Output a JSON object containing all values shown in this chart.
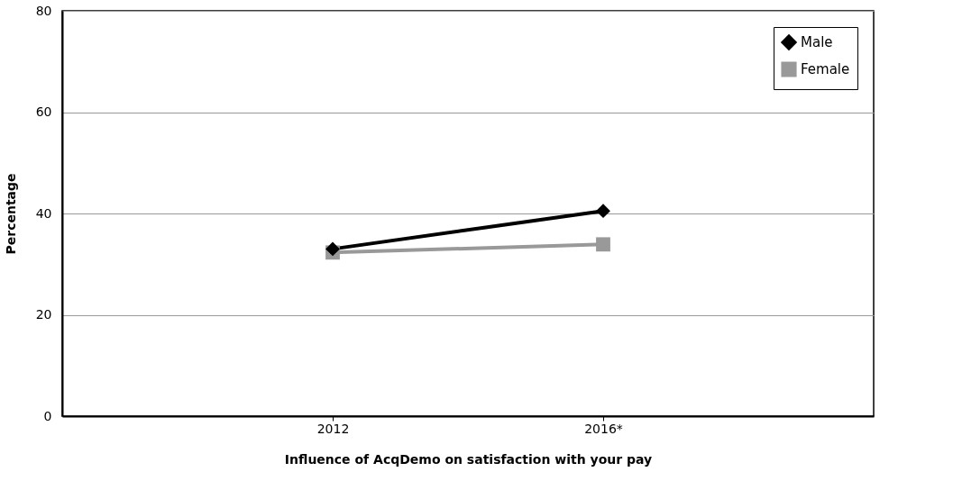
{
  "chart_data": {
    "type": "line",
    "xlabel": "Influence of AcqDemo on satisfaction with your pay",
    "ylabel": "Percentage",
    "categories": [
      "2012",
      "2016*"
    ],
    "series": [
      {
        "name": "Male",
        "color": "#000000",
        "marker": "diamond",
        "values": [
          33,
          40.5
        ]
      },
      {
        "name": "Female",
        "color": "#999999",
        "marker": "square",
        "values": [
          32.3,
          33.9
        ]
      }
    ],
    "ylim": [
      0,
      80
    ],
    "yticks": [
      0,
      20,
      40,
      60,
      80
    ],
    "grid": "y",
    "legend": "top right",
    "line_style": "solid"
  }
}
